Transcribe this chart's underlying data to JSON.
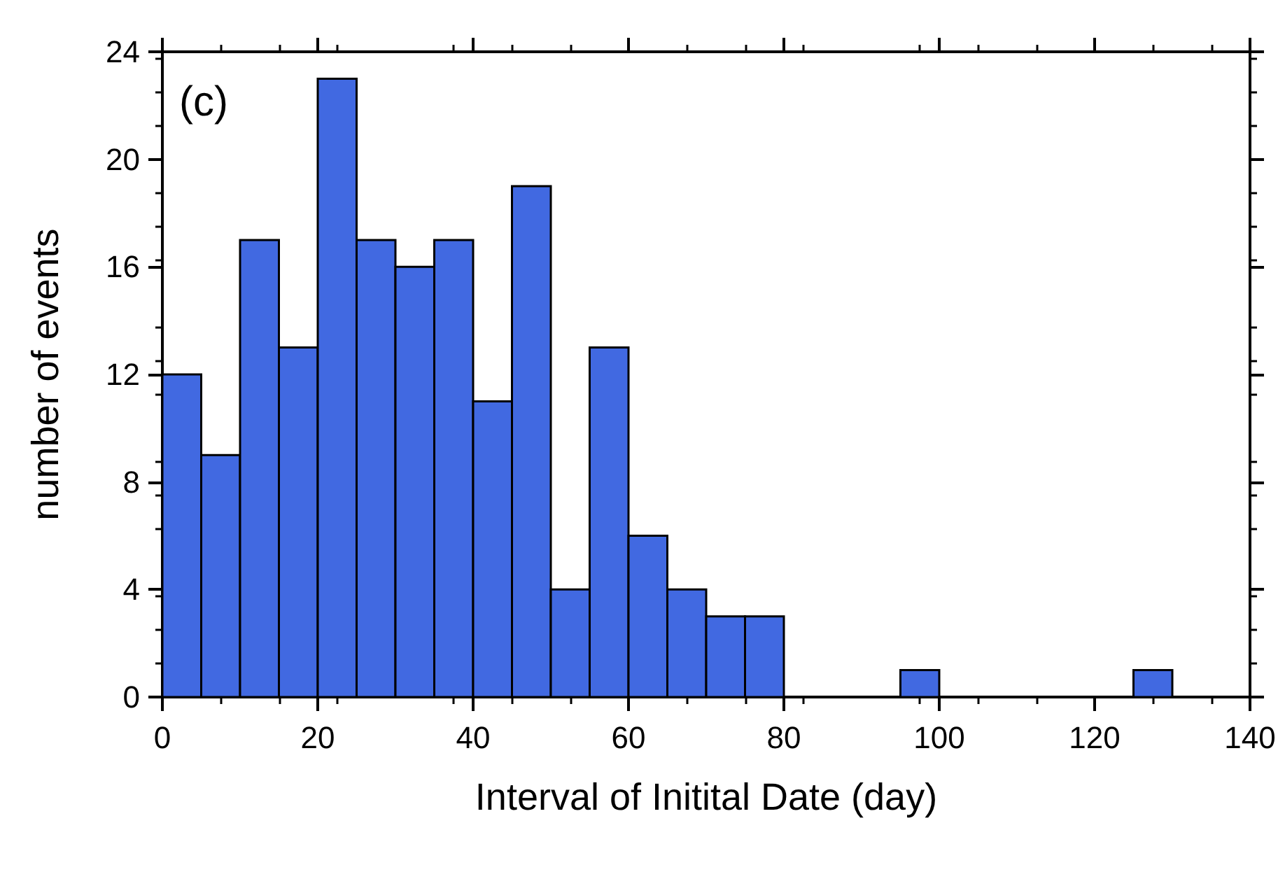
{
  "chart_data": {
    "type": "histogram",
    "xlabel": "Interval of Initital Date (day)",
    "ylabel": "number of events",
    "annotations": [
      "(c)"
    ],
    "bins": [
      0,
      5,
      10,
      15,
      20,
      25,
      30,
      35,
      40,
      45,
      50,
      55,
      60,
      65,
      70,
      75,
      80,
      85,
      90,
      95,
      100,
      105,
      110,
      115,
      120,
      125,
      130
    ],
    "values": [
      12,
      9,
      17,
      13,
      23,
      17,
      16,
      17,
      11,
      19,
      4,
      13,
      6,
      4,
      3,
      3,
      0,
      0,
      0,
      1,
      0,
      0,
      0,
      0,
      0,
      1
    ],
    "color": "#4169e1",
    "xlim": [
      0,
      140
    ],
    "xticks": [
      0,
      20,
      40,
      60,
      80,
      100,
      120,
      140
    ],
    "ylim": [
      0,
      24
    ],
    "yticks": [
      0,
      4,
      8,
      12,
      16,
      20,
      24
    ],
    "grid": false
  }
}
